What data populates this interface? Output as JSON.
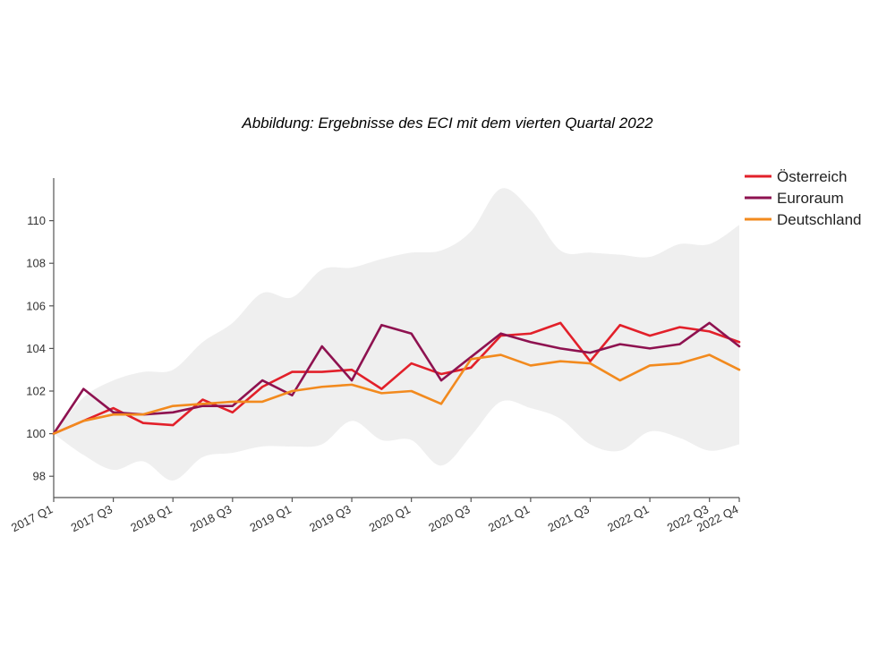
{
  "chart_data": {
    "type": "line",
    "title": "Abbildung: Ergebnisse des ECI mit dem vierten Quartal 2022",
    "xlabel": "",
    "ylabel": "",
    "ylim": [
      97,
      112
    ],
    "y_ticks": [
      98,
      100,
      102,
      104,
      106,
      108,
      110
    ],
    "categories": [
      "2017 Q1",
      "2017 Q2",
      "2017 Q3",
      "2017 Q4",
      "2018 Q1",
      "2018 Q2",
      "2018 Q3",
      "2018 Q4",
      "2019 Q1",
      "2019 Q2",
      "2019 Q3",
      "2019 Q4",
      "2020 Q1",
      "2020 Q2",
      "2020 Q3",
      "2020 Q4",
      "2021 Q1",
      "2021 Q2",
      "2021 Q3",
      "2021 Q4",
      "2022 Q1",
      "2022 Q2",
      "2022 Q3",
      "2022 Q4"
    ],
    "x_tick_labels": [
      "2017 Q1",
      "2017 Q3",
      "2018 Q1",
      "2018 Q3",
      "2019 Q1",
      "2019 Q3",
      "2020 Q1",
      "2020 Q3",
      "2021 Q1",
      "2021 Q3",
      "2022 Q1",
      "2022 Q3",
      "2022 Q4"
    ],
    "grid": false,
    "legend_position": "top-right",
    "band": {
      "color": "#efefef",
      "upper": [
        100.0,
        101.7,
        102.5,
        102.9,
        103.0,
        104.3,
        105.2,
        106.6,
        106.4,
        107.7,
        107.8,
        108.2,
        108.5,
        108.6,
        109.5,
        111.5,
        110.5,
        108.6,
        108.5,
        108.4,
        108.3,
        108.9,
        108.9,
        109.8
      ],
      "lower": [
        100.0,
        99.0,
        98.3,
        98.7,
        97.8,
        98.9,
        99.1,
        99.4,
        99.4,
        99.5,
        100.6,
        99.7,
        99.7,
        98.5,
        99.9,
        101.5,
        101.2,
        100.7,
        99.5,
        99.2,
        100.1,
        99.8,
        99.2,
        99.5
      ]
    },
    "series": [
      {
        "name": "Österreich",
        "color": "#e2202a",
        "values": [
          100.0,
          100.6,
          101.2,
          100.5,
          100.4,
          101.6,
          101.0,
          102.2,
          102.9,
          102.9,
          103.0,
          102.1,
          103.3,
          102.8,
          103.1,
          104.6,
          104.7,
          105.2,
          103.4,
          105.1,
          104.6,
          105.0,
          104.8,
          104.3
        ]
      },
      {
        "name": "Euroraum",
        "color": "#8e1250",
        "values": [
          100.0,
          102.1,
          101.0,
          100.9,
          101.0,
          101.3,
          101.3,
          102.5,
          101.8,
          104.1,
          102.5,
          105.1,
          104.7,
          102.5,
          103.6,
          104.7,
          104.3,
          104.0,
          103.8,
          104.2,
          104.0,
          104.2,
          105.2,
          104.1
        ]
      },
      {
        "name": "Deutschland",
        "color": "#f28a1e",
        "values": [
          100.0,
          100.6,
          100.9,
          100.9,
          101.3,
          101.4,
          101.5,
          101.5,
          102.0,
          102.2,
          102.3,
          101.9,
          102.0,
          101.4,
          103.5,
          103.7,
          103.2,
          103.4,
          103.3,
          102.5,
          103.2,
          103.3,
          103.7,
          103.0
        ]
      }
    ]
  }
}
